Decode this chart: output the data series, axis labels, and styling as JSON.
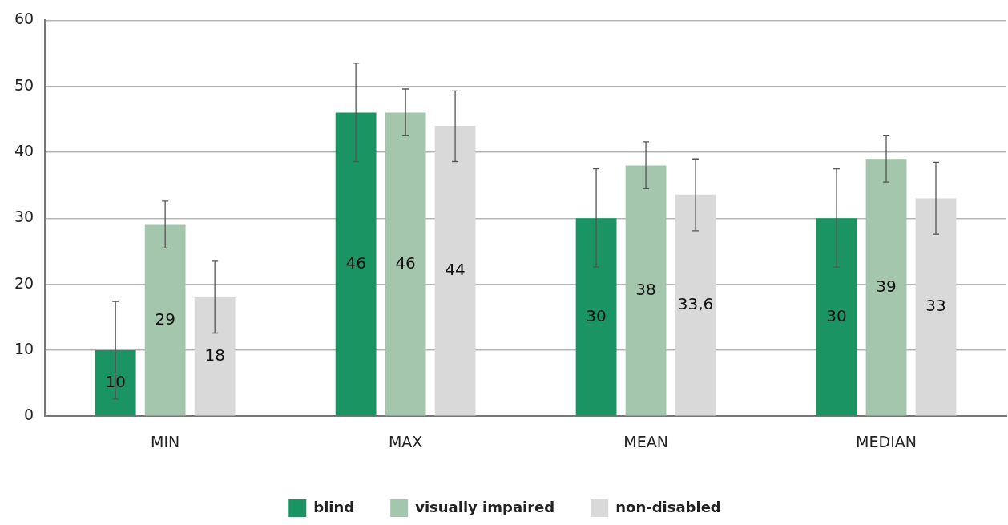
{
  "chart_data": {
    "type": "bar",
    "categories": [
      "MIN",
      "MAX",
      "MEAN",
      "MEDIAN"
    ],
    "series": [
      {
        "name": "blind",
        "color": "#1b9463",
        "values": [
          10,
          46,
          30,
          30
        ],
        "value_labels": [
          "10",
          "46",
          "30",
          "30"
        ],
        "errors": [
          [
            2.6,
            17.4
          ],
          [
            38.6,
            53.5
          ],
          [
            22.6,
            37.5
          ],
          [
            22.6,
            37.5
          ]
        ]
      },
      {
        "name": "visually impaired",
        "color": "#a3c6ad",
        "values": [
          29,
          46,
          38,
          39
        ],
        "value_labels": [
          "29",
          "46",
          "38",
          "39"
        ],
        "errors": [
          [
            25.5,
            32.6
          ],
          [
            42.5,
            49.6
          ],
          [
            34.5,
            41.6
          ],
          [
            35.5,
            42.5
          ]
        ]
      },
      {
        "name": "non-disabled",
        "color": "#d9d9d9",
        "values": [
          18,
          44,
          33.6,
          33
        ],
        "value_labels": [
          "18",
          "44",
          "33,6",
          "33"
        ],
        "errors": [
          [
            12.6,
            23.5
          ],
          [
            38.6,
            49.3
          ],
          [
            28.1,
            39.0
          ],
          [
            27.6,
            38.5
          ]
        ]
      }
    ],
    "ylim": [
      0,
      60
    ],
    "yticks": [
      0,
      10,
      20,
      30,
      40,
      50,
      60
    ],
    "grid": "y",
    "legend": "bottom"
  }
}
